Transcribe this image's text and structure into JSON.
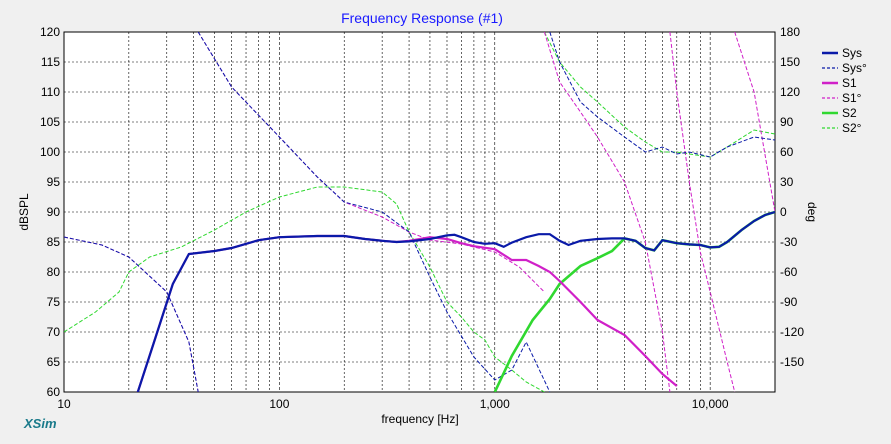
{
  "chart_data": {
    "type": "line",
    "title": "Frequency Response (#1)",
    "xlabel": "frequency [Hz]",
    "ylabel": "dBSPL",
    "y2label": "deg",
    "x_scale": "log",
    "xlim": [
      10,
      20000
    ],
    "ylim": [
      60,
      120
    ],
    "y2lim": [
      -180,
      180
    ],
    "x_ticks": [
      10,
      100,
      1000,
      10000
    ],
    "x_tick_labels": [
      "10",
      "100",
      "1,000",
      "10,000"
    ],
    "y_ticks": [
      60,
      65,
      70,
      75,
      80,
      85,
      90,
      95,
      100,
      105,
      110,
      115,
      120
    ],
    "y2_ticks": [
      180,
      150,
      120,
      90,
      60,
      30,
      0,
      -30,
      -60,
      -90,
      -120,
      -150
    ],
    "legend_position": "right",
    "grid": true,
    "brand": "XSim",
    "series": [
      {
        "name": "Sys",
        "axis": "left",
        "style": "solid",
        "color": "#0a1aa8",
        "points": [
          [
            22,
            60
          ],
          [
            26,
            68
          ],
          [
            32,
            78
          ],
          [
            38,
            83
          ],
          [
            50,
            83.5
          ],
          [
            60,
            84
          ],
          [
            80,
            85.3
          ],
          [
            100,
            85.8
          ],
          [
            150,
            86
          ],
          [
            200,
            86
          ],
          [
            250,
            85.5
          ],
          [
            300,
            85.2
          ],
          [
            350,
            85
          ],
          [
            400,
            85.1
          ],
          [
            500,
            85.5
          ],
          [
            600,
            86.1
          ],
          [
            650,
            86.2
          ],
          [
            700,
            85.8
          ],
          [
            800,
            85
          ],
          [
            900,
            84.7
          ],
          [
            1000,
            84.8
          ],
          [
            1100,
            84.2
          ],
          [
            1200,
            84.9
          ],
          [
            1400,
            85.8
          ],
          [
            1600,
            86.3
          ],
          [
            1800,
            86.3
          ],
          [
            2000,
            85.2
          ],
          [
            2200,
            84.5
          ],
          [
            2500,
            85.2
          ],
          [
            3000,
            85.5
          ],
          [
            3500,
            85.6
          ],
          [
            4000,
            85.6
          ],
          [
            4500,
            85.2
          ],
          [
            5000,
            84
          ],
          [
            5500,
            83.6
          ],
          [
            6000,
            85.3
          ],
          [
            7000,
            84.8
          ],
          [
            8000,
            84.6
          ],
          [
            9000,
            84.5
          ],
          [
            10000,
            84.1
          ],
          [
            11000,
            84.2
          ],
          [
            12000,
            85
          ],
          [
            14000,
            87
          ],
          [
            16000,
            88.5
          ],
          [
            18000,
            89.5
          ],
          [
            20000,
            90
          ]
        ]
      },
      {
        "name": "Sys°",
        "axis": "right",
        "style": "dashed",
        "color": "#0a1aa8",
        "points": [
          [
            10,
            -25
          ],
          [
            15,
            -33
          ],
          [
            20,
            -45
          ],
          [
            30,
            -80
          ],
          [
            38,
            -130
          ],
          [
            42,
            -180
          ],
          [
            42,
            180
          ],
          [
            60,
            125
          ],
          [
            100,
            75
          ],
          [
            150,
            35
          ],
          [
            200,
            10
          ],
          [
            300,
            0
          ],
          [
            400,
            -20
          ],
          [
            500,
            -65
          ],
          [
            600,
            -100
          ],
          [
            800,
            -145
          ],
          [
            1000,
            -168
          ],
          [
            1200,
            -158
          ],
          [
            1400,
            -130
          ],
          [
            1800,
            -180
          ],
          [
            1800,
            180
          ],
          [
            2000,
            150
          ],
          [
            2500,
            110
          ],
          [
            3000,
            95
          ],
          [
            4000,
            75
          ],
          [
            5000,
            60
          ],
          [
            6000,
            65
          ],
          [
            7000,
            58
          ],
          [
            8000,
            60
          ],
          [
            10000,
            55
          ],
          [
            12000,
            65
          ],
          [
            16000,
            75
          ],
          [
            20000,
            72
          ]
        ]
      },
      {
        "name": "S1",
        "axis": "left",
        "style": "solid",
        "color": "#d020c8",
        "points": [
          [
            22,
            60
          ],
          [
            26,
            68
          ],
          [
            32,
            78
          ],
          [
            38,
            83
          ],
          [
            50,
            83.5
          ],
          [
            60,
            84
          ],
          [
            80,
            85.3
          ],
          [
            100,
            85.8
          ],
          [
            150,
            86
          ],
          [
            200,
            86
          ],
          [
            250,
            85.5
          ],
          [
            300,
            85.2
          ],
          [
            350,
            85
          ],
          [
            400,
            85.2
          ],
          [
            500,
            85.8
          ],
          [
            600,
            85.5
          ],
          [
            700,
            84.8
          ],
          [
            800,
            84.3
          ],
          [
            1000,
            83.8
          ],
          [
            1200,
            82
          ],
          [
            1400,
            82
          ],
          [
            1600,
            81
          ],
          [
            1800,
            80
          ],
          [
            2000,
            78.5
          ],
          [
            2500,
            75
          ],
          [
            3000,
            72
          ],
          [
            4000,
            69.5
          ],
          [
            5000,
            66
          ],
          [
            6000,
            63
          ],
          [
            7000,
            61
          ]
        ]
      },
      {
        "name": "S1°",
        "axis": "right",
        "style": "dashed",
        "color": "#d020c8",
        "points": [
          [
            10,
            -25
          ],
          [
            15,
            -33
          ],
          [
            20,
            -45
          ],
          [
            30,
            -80
          ],
          [
            38,
            -130
          ],
          [
            42,
            -180
          ],
          [
            42,
            180
          ],
          [
            60,
            125
          ],
          [
            100,
            75
          ],
          [
            150,
            35
          ],
          [
            200,
            10
          ],
          [
            300,
            -5
          ],
          [
            400,
            -20
          ],
          [
            500,
            -28
          ],
          [
            700,
            -32
          ],
          [
            1000,
            -40
          ],
          [
            1300,
            -55
          ],
          [
            1700,
            -80
          ],
          [
            1700,
            180
          ],
          [
            2000,
            130
          ],
          [
            2500,
            100
          ],
          [
            3000,
            75
          ],
          [
            4000,
            30
          ],
          [
            5000,
            -30
          ],
          [
            6000,
            -120
          ],
          [
            6500,
            -180
          ],
          [
            6500,
            180
          ],
          [
            7000,
            120
          ],
          [
            8000,
            30
          ],
          [
            9000,
            -40
          ],
          [
            10000,
            -80
          ],
          [
            12000,
            -150
          ],
          [
            13000,
            -180
          ],
          [
            13000,
            180
          ],
          [
            16000,
            120
          ],
          [
            20000,
            0
          ]
        ]
      },
      {
        "name": "S2",
        "axis": "left",
        "style": "solid",
        "color": "#30d830",
        "points": [
          [
            1000,
            60
          ],
          [
            1200,
            66
          ],
          [
            1500,
            72
          ],
          [
            1800,
            75.5
          ],
          [
            2000,
            78
          ],
          [
            2500,
            81
          ],
          [
            3000,
            82.3
          ],
          [
            3500,
            83.5
          ],
          [
            4000,
            85.6
          ],
          [
            4500,
            85.2
          ],
          [
            5000,
            84
          ],
          [
            5500,
            83.6
          ],
          [
            6000,
            85.3
          ],
          [
            7000,
            84.8
          ],
          [
            8000,
            84.6
          ],
          [
            9000,
            84.5
          ],
          [
            10000,
            84.1
          ],
          [
            11000,
            84.2
          ],
          [
            12000,
            85
          ],
          [
            14000,
            87
          ],
          [
            16000,
            88.5
          ],
          [
            18000,
            89.5
          ],
          [
            20000,
            90
          ]
        ]
      },
      {
        "name": "S2°",
        "axis": "right",
        "style": "dashed",
        "color": "#30d830",
        "points": [
          [
            10,
            -120
          ],
          [
            14,
            -100
          ],
          [
            18,
            -80
          ],
          [
            20,
            -60
          ],
          [
            25,
            -45
          ],
          [
            35,
            -35
          ],
          [
            50,
            -18
          ],
          [
            70,
            0
          ],
          [
            100,
            15
          ],
          [
            150,
            25
          ],
          [
            200,
            25
          ],
          [
            300,
            20
          ],
          [
            350,
            8
          ],
          [
            400,
            -20
          ],
          [
            500,
            -55
          ],
          [
            600,
            -90
          ],
          [
            700,
            -105
          ],
          [
            800,
            -120
          ],
          [
            900,
            -128
          ],
          [
            1000,
            -145
          ],
          [
            1200,
            -158
          ],
          [
            1400,
            -170
          ],
          [
            1700,
            -180
          ],
          [
            1700,
            180
          ],
          [
            2000,
            150
          ],
          [
            2500,
            125
          ],
          [
            3000,
            110
          ],
          [
            4000,
            85
          ],
          [
            5000,
            70
          ],
          [
            6000,
            60
          ],
          [
            7000,
            60
          ],
          [
            8000,
            58
          ],
          [
            10000,
            55
          ],
          [
            12000,
            65
          ],
          [
            16000,
            82
          ],
          [
            20000,
            78
          ]
        ]
      }
    ]
  }
}
